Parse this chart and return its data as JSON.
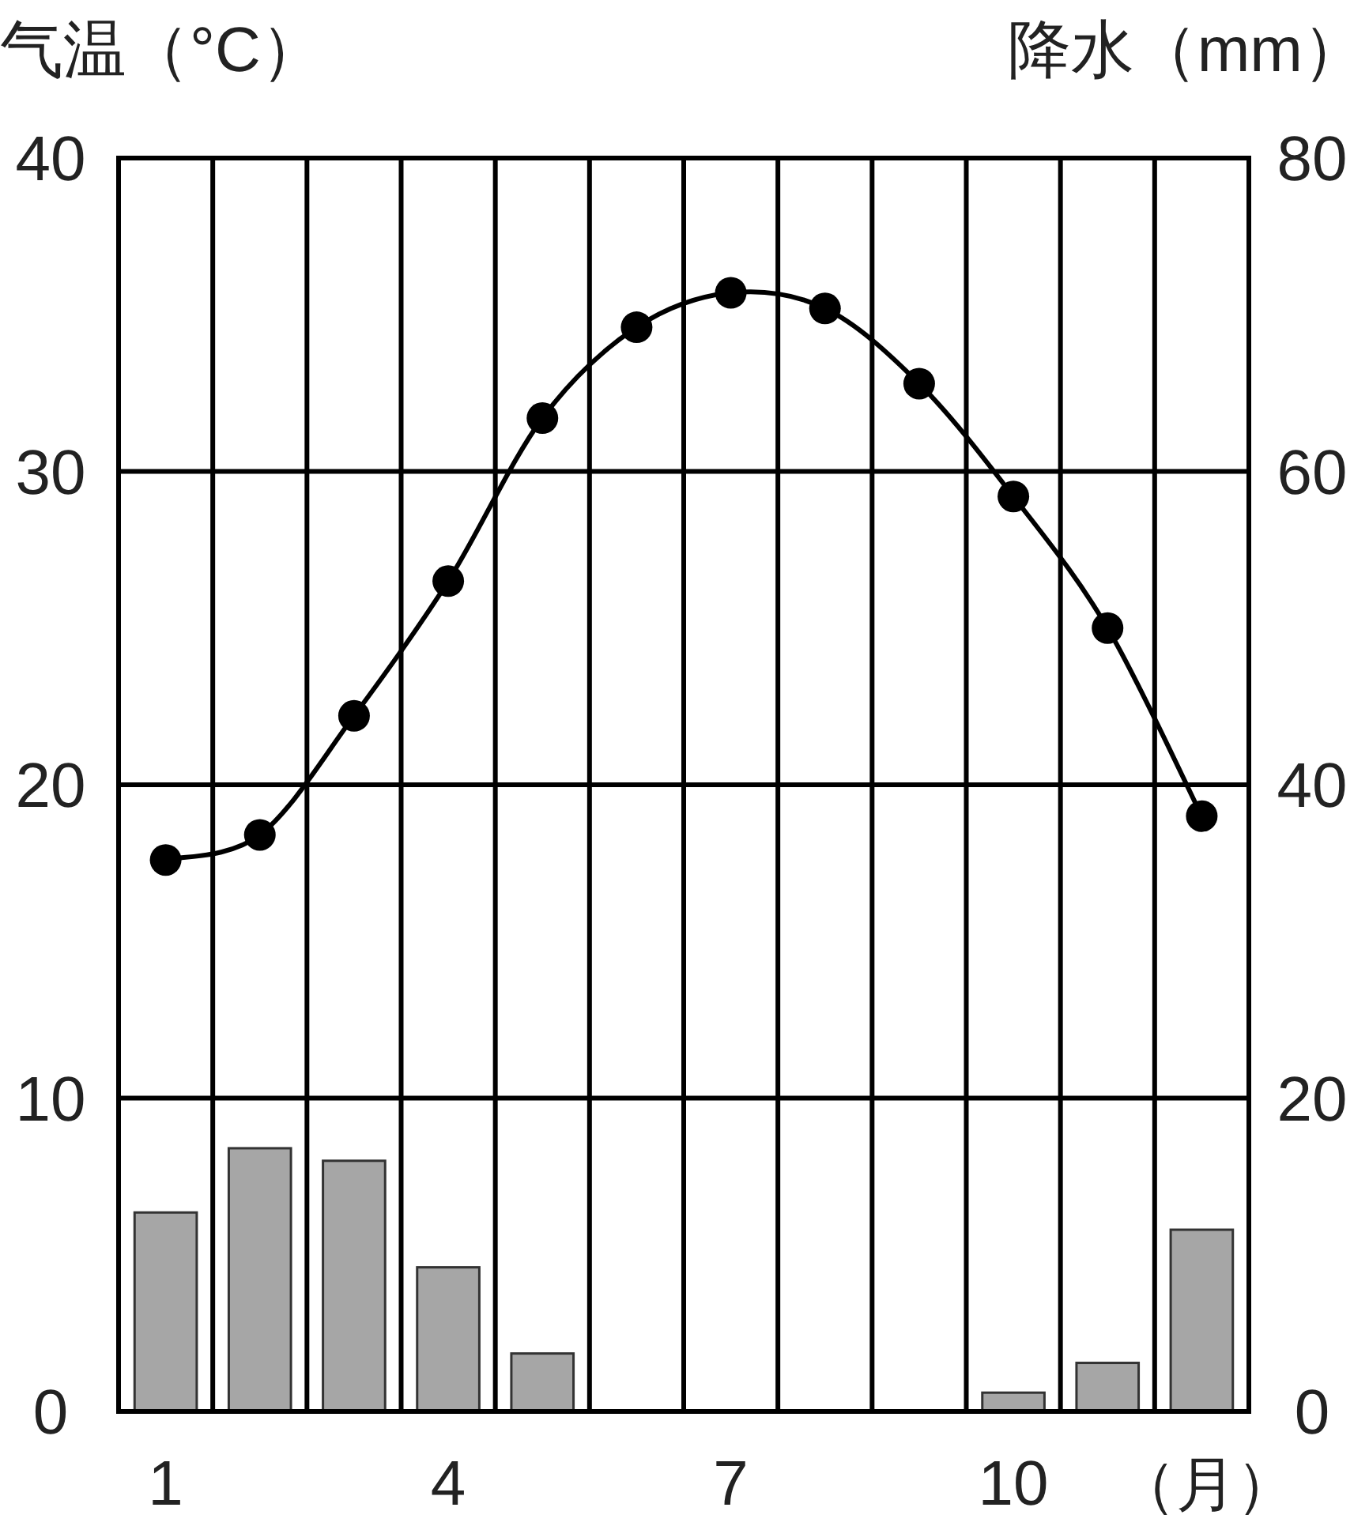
{
  "chart_data": {
    "type": "bar",
    "ylabel": "气温（°C）",
    "y2label": "降水（mm）",
    "xlabel": "（月）",
    "categories": [
      "1",
      null,
      null,
      "4",
      null,
      null,
      "7",
      null,
      null,
      "10",
      null,
      null
    ],
    "series": [
      {
        "axis": "y2",
        "color": "#a6a6a6",
        "values": [
          12.7,
          16.8,
          16.0,
          9.2,
          3.7,
          0,
          0,
          0,
          0,
          1.2,
          3.1,
          11.6
        ]
      },
      {
        "type": "line",
        "axis": "y",
        "color": "#000000",
        "marker": "circle",
        "values": [
          17.6,
          18.4,
          22.2,
          26.5,
          31.7,
          34.6,
          35.7,
          35.2,
          32.8,
          29.2,
          25.0,
          19.0
        ]
      }
    ],
    "ylim": [
      0,
      40
    ],
    "yticks": [
      0,
      10,
      20,
      30,
      40
    ],
    "y2lim": [
      0,
      80
    ],
    "y2ticks": [
      0,
      20,
      40,
      60,
      80
    ],
    "grid": true
  }
}
